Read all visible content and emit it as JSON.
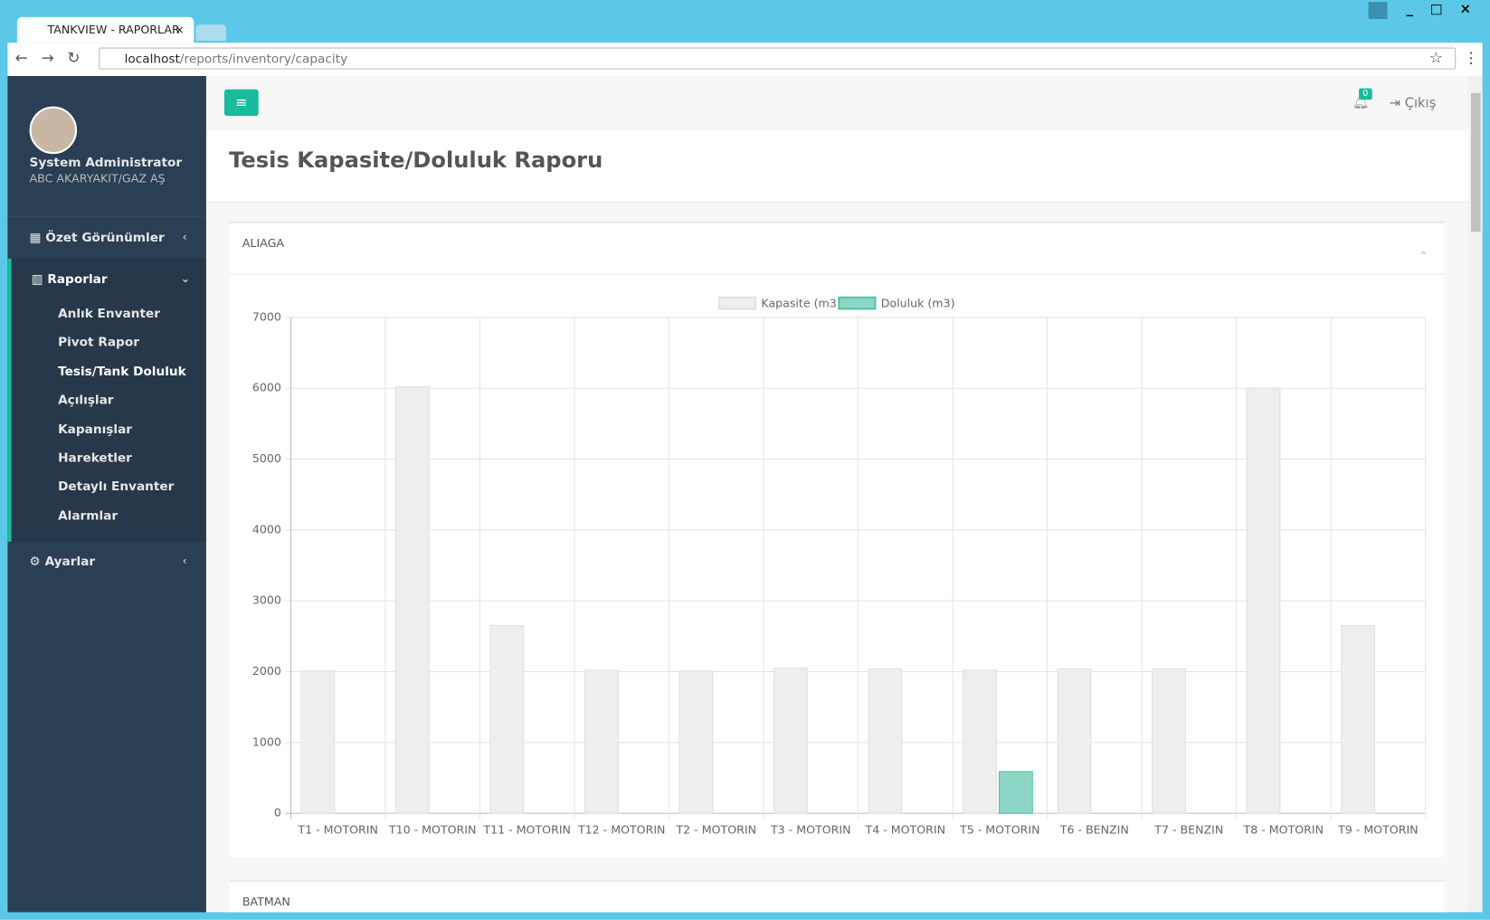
{
  "browser": {
    "tab_title": "TANKVIEW - RAPORLAR",
    "url_host": "localhost",
    "url_path": "/reports/inventory/capacity"
  },
  "sidebar": {
    "user_name": "System Administrator",
    "company": "ABC AKARYAKIT/GAZ AŞ",
    "menu": [
      {
        "label": "Özet Görünümler"
      },
      {
        "label": "Raporlar",
        "items": [
          "Anlık Envanter",
          "Pivot Rapor",
          "Tesis/Tank Doluluk",
          "Açılışlar",
          "Kapanışlar",
          "Hareketler",
          "Detaylı Envanter",
          "Alarmlar"
        ]
      },
      {
        "label": "Ayarlar"
      }
    ]
  },
  "header": {
    "notification_count": 0,
    "logout": "Çıkış"
  },
  "page_title": "Tesis Kapasite/Doluluk Raporu",
  "next_panel_title": "BATMAN",
  "chart_data": {
    "type": "bar",
    "title": "ALIAGA",
    "categories": [
      "T1 - MOTORIN",
      "T10 - MOTORIN",
      "T11 - MOTORIN",
      "T12 - MOTORIN",
      "T2 - MOTORIN",
      "T3 - MOTORIN",
      "T4 - MOTORIN",
      "T5 - MOTORIN",
      "T6 - BENZIN",
      "T7 - BENZIN",
      "T8 - MOTORIN",
      "T9 - MOTORIN"
    ],
    "series": [
      {
        "name": "Kapasite (m3)",
        "color": "#eeeeee",
        "values": [
          2010,
          6020,
          2650,
          2020,
          2010,
          2050,
          2040,
          2020,
          2040,
          2040,
          6000,
          2650
        ]
      },
      {
        "name": "Doluluk (m3)",
        "color": "#8dd6c5",
        "values": [
          0,
          0,
          0,
          0,
          0,
          0,
          0,
          590,
          0,
          0,
          0,
          0
        ]
      }
    ],
    "ylim": [
      0,
      7000
    ],
    "yticks": [
      0,
      1000,
      2000,
      3000,
      4000,
      5000,
      6000,
      7000
    ],
    "grid": true,
    "legend": "top"
  }
}
